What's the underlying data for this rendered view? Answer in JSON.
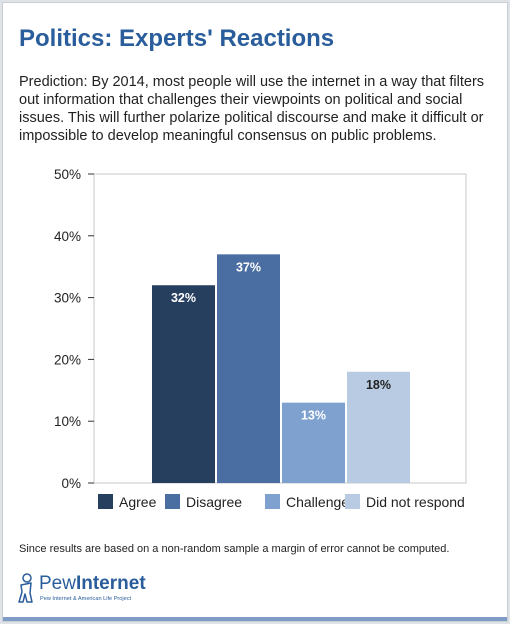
{
  "header": {
    "title": "Politics: Experts' Reactions",
    "description": "Prediction: By 2014, most people will use the internet in a way that filters out information that challenges their viewpoints on political and social issues. This will further polarize political discourse and make it difficult or impossible to develop meaningful consensus on public problems."
  },
  "chart_data": {
    "type": "bar",
    "categories": [
      "Agree",
      "Disagree",
      "Challenge",
      "Did not respond"
    ],
    "values": [
      32,
      37,
      13,
      18
    ],
    "value_labels": [
      "32%",
      "37%",
      "13%",
      "18%"
    ],
    "colors": [
      "#263f5e",
      "#4a6ea2",
      "#7ea1cf",
      "#b8cbe3"
    ],
    "label_colors": [
      "#ffffff",
      "#ffffff",
      "#ffffff",
      "#222222"
    ],
    "ylim": [
      0,
      50
    ],
    "yticks": [
      "0%",
      "10%",
      "20%",
      "30%",
      "40%",
      "50%"
    ],
    "title": "",
    "xlabel": "",
    "ylabel": "",
    "grid": false,
    "legend": {
      "placement": "bottom",
      "labels": [
        "Agree",
        "Disagree",
        "Challenge",
        "Did not respond"
      ]
    }
  },
  "footnote": "Since results are based on a non-random sample a margin of error cannot be computed.",
  "logo": {
    "name_regular": "Pew",
    "name_bold": "Internet",
    "tagline": "Pew Internet & American Life Project"
  }
}
